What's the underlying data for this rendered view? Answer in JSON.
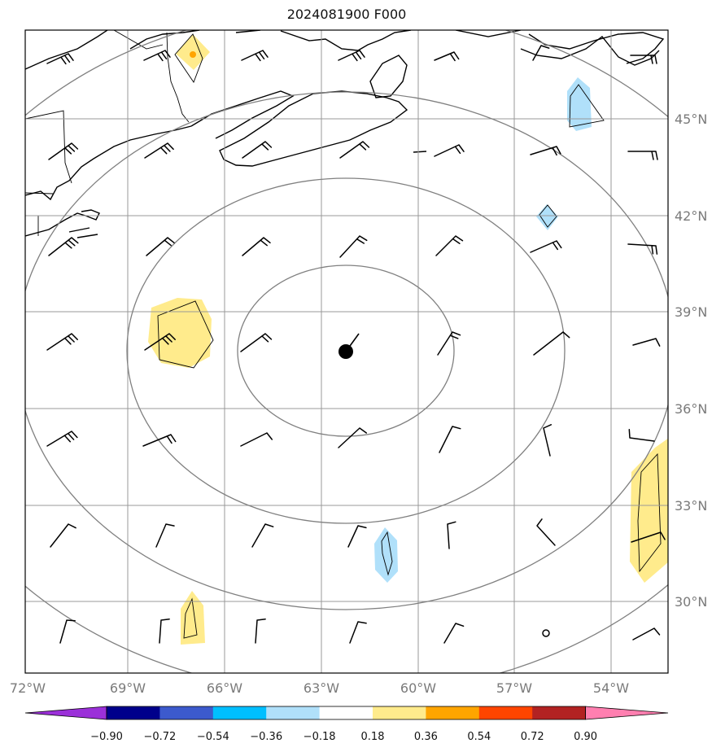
{
  "title": "2024081900 F000",
  "lon_labels": [
    "72°W",
    "69°W",
    "66°W",
    "63°W",
    "60°W",
    "57°W",
    "54°W"
  ],
  "lat_labels": [
    "45°N",
    "42°N",
    "39°N",
    "36°N",
    "33°N",
    "30°N"
  ],
  "colorbar": {
    "labels": [
      "−0.90",
      "−0.72",
      "−0.54",
      "−0.36",
      "−0.18",
      "0.18",
      "0.36",
      "0.54",
      "0.72",
      "0.90"
    ],
    "colors": [
      "#9b30d9",
      "#00008b",
      "#3c5acd",
      "#00bfff",
      "#b0e0fa",
      "#ffffff",
      "#ffeb8c",
      "#ffa500",
      "#ff4500",
      "#b22222",
      "#ff7fb0"
    ]
  },
  "map": {
    "center_marker": "storm-center-dot",
    "range_ring_count": 4,
    "anomaly_fill_colors": {
      "positive": "#ffeb8c",
      "positive_strong": "#ffa500",
      "negative": "#b0e0fa"
    }
  }
}
